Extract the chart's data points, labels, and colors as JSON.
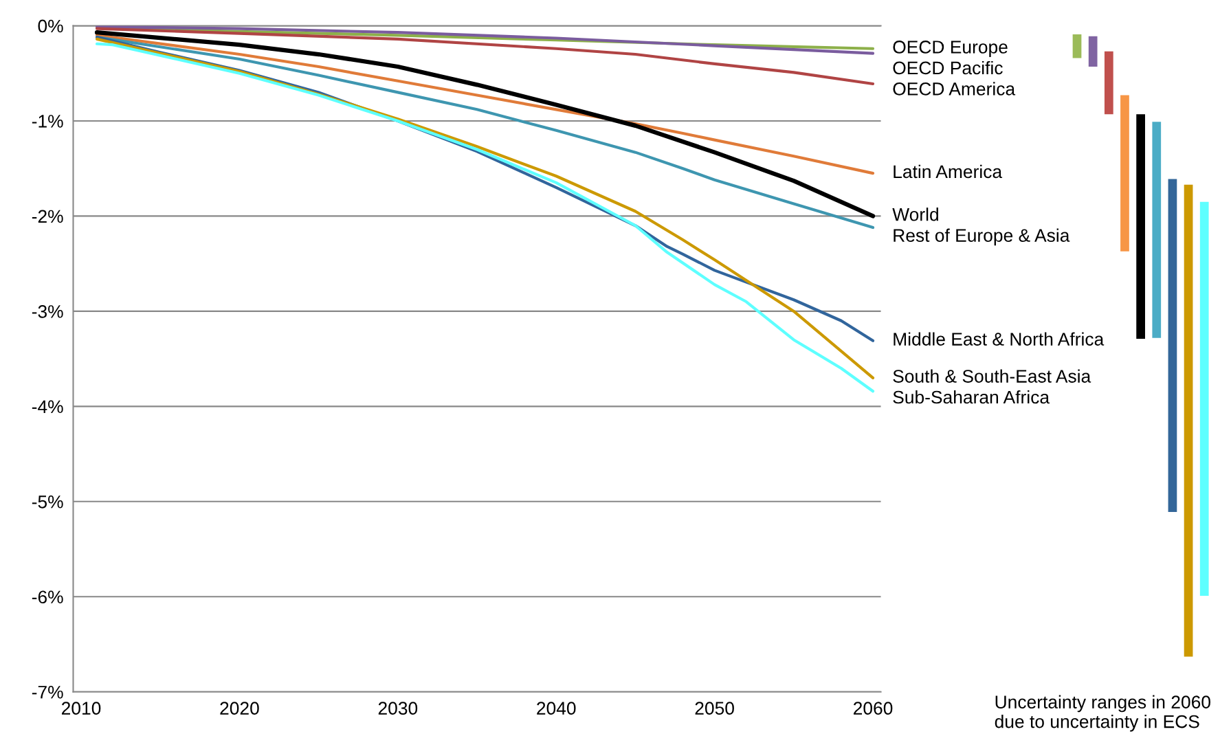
{
  "chart_data": [
    {
      "type": "line",
      "xlim": [
        2009.5,
        2060.5
      ],
      "xticks": [
        2010,
        2020,
        2030,
        2040,
        2050,
        2060
      ],
      "ylim": [
        -7,
        0
      ],
      "yticks": [
        {
          "value": 0,
          "label": "0%"
        },
        {
          "value": -1,
          "label": "-1%"
        },
        {
          "value": -2,
          "label": "-2%"
        },
        {
          "value": -3,
          "label": "-3%"
        },
        {
          "value": -4,
          "label": "-4%"
        },
        {
          "value": -5,
          "label": "-5%"
        },
        {
          "value": -6,
          "label": "-6%"
        },
        {
          "value": -7,
          "label": "-7%"
        }
      ],
      "grid": "y",
      "legend": false,
      "series": [
        {
          "name": "OECD Europe",
          "color": "#8db04a",
          "x": [
            2011,
            2020,
            2030,
            2040,
            2050,
            2060
          ],
          "values": [
            -0.02,
            -0.06,
            -0.1,
            -0.15,
            -0.2,
            -0.24
          ]
        },
        {
          "name": "OECD Pacific",
          "color": "#7a5c9e",
          "x": [
            2011,
            2020,
            2030,
            2040,
            2050,
            2060
          ],
          "values": [
            -0.01,
            -0.03,
            -0.07,
            -0.13,
            -0.21,
            -0.29
          ]
        },
        {
          "name": "OECD America",
          "color": "#b04444",
          "x": [
            2011,
            2020,
            2030,
            2040,
            2045,
            2050,
            2055,
            2060
          ],
          "values": [
            -0.03,
            -0.08,
            -0.14,
            -0.24,
            -0.3,
            -0.4,
            -0.49,
            -0.61
          ]
        },
        {
          "name": "Latin America",
          "color": "#e07b39",
          "x": [
            2011,
            2020,
            2025,
            2030,
            2035,
            2040,
            2045,
            2048,
            2050,
            2055,
            2060
          ],
          "values": [
            -0.1,
            -0.3,
            -0.43,
            -0.58,
            -0.73,
            -0.88,
            -1.03,
            -1.13,
            -1.2,
            -1.37,
            -1.55
          ]
        },
        {
          "name": "World",
          "color": "#000000",
          "x": [
            2011,
            2020,
            2025,
            2030,
            2035,
            2040,
            2045,
            2050,
            2055,
            2060
          ],
          "values": [
            -0.07,
            -0.2,
            -0.3,
            -0.43,
            -0.62,
            -0.83,
            -1.05,
            -1.33,
            -1.63,
            -2.0
          ]
        },
        {
          "name": "Rest of Europe & Asia",
          "color": "#3e96b0",
          "x": [
            2011,
            2020,
            2025,
            2030,
            2035,
            2040,
            2045,
            2048,
            2050,
            2055,
            2060
          ],
          "values": [
            -0.12,
            -0.35,
            -0.52,
            -0.7,
            -0.88,
            -1.1,
            -1.33,
            -1.5,
            -1.62,
            -1.87,
            -2.12
          ]
        },
        {
          "name": "Middle East & North Africa",
          "color": "#31659c",
          "x": [
            2011,
            2015,
            2020,
            2025,
            2030,
            2035,
            2040,
            2045,
            2047,
            2048,
            2050,
            2055,
            2058,
            2060
          ],
          "values": [
            -0.12,
            -0.28,
            -0.47,
            -0.7,
            -1.0,
            -1.32,
            -1.7,
            -2.1,
            -2.32,
            -2.4,
            -2.57,
            -2.88,
            -3.1,
            -3.31
          ]
        },
        {
          "name": "South & South-East Asia",
          "color": "#cc9900",
          "x": [
            2011,
            2020,
            2025,
            2030,
            2035,
            2040,
            2045,
            2048,
            2050,
            2055,
            2060
          ],
          "values": [
            -0.14,
            -0.48,
            -0.72,
            -0.98,
            -1.27,
            -1.58,
            -1.95,
            -2.25,
            -2.46,
            -3.0,
            -3.7
          ]
        },
        {
          "name": "Sub-Saharan Africa",
          "color": "#5effff",
          "x": [
            2011,
            2012,
            2020,
            2025,
            2030,
            2035,
            2040,
            2045,
            2047,
            2050,
            2052,
            2055,
            2058,
            2060
          ],
          "values": [
            -0.19,
            -0.2,
            -0.5,
            -0.73,
            -1.0,
            -1.3,
            -1.65,
            -2.1,
            -2.38,
            -2.72,
            -2.9,
            -3.3,
            -3.6,
            -3.84
          ]
        }
      ]
    },
    {
      "type": "bar",
      "xlabel": "Uncertainty ranges in 2060\ndue to uncertainty in ECS",
      "ylim": [
        -7,
        0
      ],
      "tick_labels": false,
      "categories": [
        null,
        null,
        null,
        null,
        null,
        null,
        null,
        null,
        null
      ],
      "base": [
        -0.09,
        -0.11,
        -0.27,
        -0.73,
        -0.93,
        -1.01,
        -1.61,
        -1.67,
        -1.85
      ],
      "values": [
        -0.25,
        -0.32,
        -0.66,
        -1.64,
        -2.36,
        -2.27,
        -3.5,
        -4.96,
        -4.14
      ],
      "colors": [
        "#9bbb59",
        "#8064a2",
        "#c0504d",
        "#f79646",
        "#000000",
        "#4bacc6",
        "#336699",
        "#cc9900",
        "#5effff"
      ]
    }
  ]
}
